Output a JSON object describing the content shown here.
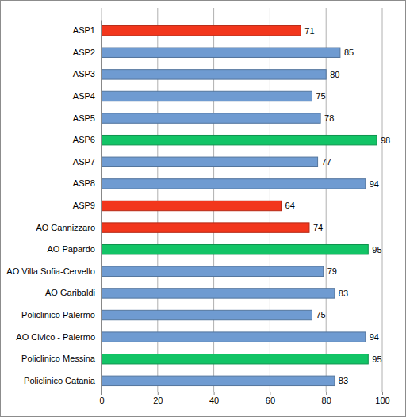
{
  "chart_data": {
    "type": "bar",
    "orientation": "horizontal",
    "categories": [
      "ASP1",
      "ASP2",
      "ASP3",
      "ASP4",
      "ASP5",
      "ASP6",
      "ASP7",
      "ASP8",
      "ASP9",
      "AO Cannizzaro",
      "AO Papardo",
      "AO Villa Sofia-Cervello",
      "AO Garibaldi",
      "Policlinico Palermo",
      "AO Civico - Palermo",
      "Policlinico Messina",
      "Policlinico Catania"
    ],
    "values": [
      71,
      85,
      80,
      75,
      78,
      98,
      77,
      94,
      64,
      74,
      95,
      79,
      83,
      75,
      94,
      95,
      83
    ],
    "colors": [
      "#f2361c",
      "#6f9bd1",
      "#6f9bd1",
      "#6f9bd1",
      "#6f9bd1",
      "#12c466",
      "#6f9bd1",
      "#6f9bd1",
      "#f2361c",
      "#f2361c",
      "#12c466",
      "#6f9bd1",
      "#6f9bd1",
      "#6f9bd1",
      "#6f9bd1",
      "#12c466",
      "#6f9bd1"
    ],
    "xlim": [
      0,
      100
    ],
    "xticks": [
      0,
      20,
      40,
      60,
      80,
      100
    ],
    "grid": true,
    "data_labels": true
  }
}
